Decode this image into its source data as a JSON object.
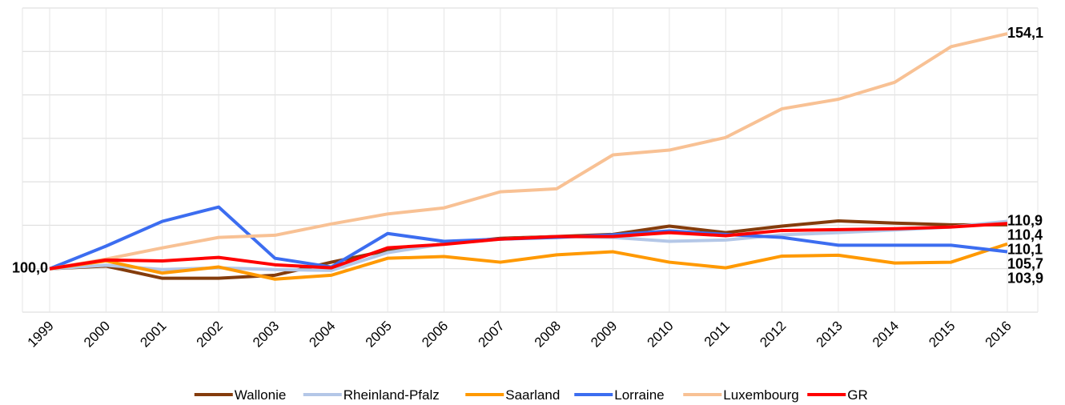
{
  "chart_data": {
    "type": "line",
    "categories": [
      "1999",
      "2000",
      "2001",
      "2002",
      "2003",
      "2004",
      "2005",
      "2006",
      "2007",
      "2008",
      "2009",
      "2010",
      "2011",
      "2012",
      "2013",
      "2014",
      "2015",
      "2016"
    ],
    "ylim": [
      90,
      160
    ],
    "yticks": [
      90,
      100,
      110,
      120,
      130,
      140,
      150,
      160
    ],
    "grid": true,
    "legend": "bottom",
    "series": [
      {
        "name": "Wallonie",
        "color": "#843c0c",
        "values": [
          100,
          100.6,
          97.8,
          97.8,
          98.5,
          101.5,
          104.2,
          105.7,
          107,
          107.4,
          107.9,
          109.8,
          108.3,
          109.8,
          111,
          110.5,
          110.1,
          110.1
        ],
        "value_labels": [
          null,
          null,
          null,
          null,
          null,
          null,
          null,
          null,
          null,
          null,
          null,
          null,
          null,
          null,
          null,
          null,
          null,
          "110,1"
        ]
      },
      {
        "name": "Rheinland-Pfalz",
        "color": "#b4c7e7",
        "values": [
          100,
          100.8,
          99.8,
          100.2,
          99.8,
          99.6,
          103.7,
          105.7,
          106.8,
          107.4,
          107.2,
          106.3,
          106.6,
          107.8,
          108.3,
          108.9,
          109.6,
          110.9
        ],
        "value_labels": [
          null,
          null,
          null,
          null,
          null,
          null,
          null,
          null,
          null,
          null,
          null,
          null,
          null,
          null,
          null,
          null,
          null,
          "110,9"
        ]
      },
      {
        "name": "Saarland",
        "color": "#ff9900",
        "values": [
          100,
          101.8,
          99,
          100.4,
          97.6,
          98.5,
          102.4,
          102.8,
          101.5,
          103.2,
          103.9,
          101.5,
          100.2,
          102.9,
          103.1,
          101.3,
          101.5,
          105.7
        ],
        "value_labels": [
          null,
          null,
          null,
          null,
          null,
          null,
          null,
          null,
          null,
          null,
          null,
          null,
          null,
          null,
          null,
          null,
          null,
          "105,7"
        ]
      },
      {
        "name": "Lorraine",
        "color": "#3c6df0",
        "values": [
          100,
          105.2,
          110.9,
          114.2,
          102.4,
          100.4,
          108.1,
          106.3,
          106.8,
          107.2,
          107.8,
          108.7,
          107.9,
          107.2,
          105.4,
          105.4,
          105.4,
          103.9
        ],
        "value_labels": [
          null,
          null,
          null,
          null,
          null,
          null,
          null,
          null,
          null,
          null,
          null,
          null,
          null,
          null,
          null,
          null,
          null,
          "103,9"
        ]
      },
      {
        "name": "Luxembourg",
        "color": "#f8c194",
        "values": [
          100,
          102.2,
          104.8,
          107.2,
          107.7,
          110.3,
          112.6,
          114,
          117.7,
          118.4,
          126.2,
          127.3,
          130.2,
          136.8,
          139,
          142.9,
          151.1,
          154.1
        ],
        "value_labels": [
          null,
          null,
          null,
          null,
          null,
          null,
          null,
          null,
          null,
          null,
          null,
          null,
          null,
          null,
          null,
          null,
          null,
          "154,1"
        ]
      },
      {
        "name": "GR",
        "color": "#ff0000",
        "values": [
          100,
          102,
          101.8,
          102.6,
          100.9,
          100.2,
          104.8,
          105.6,
          106.8,
          107.4,
          107.4,
          108.3,
          107.6,
          108.8,
          109,
          109.2,
          109.6,
          110.4
        ],
        "value_labels": [
          "100,0",
          null,
          null,
          null,
          null,
          null,
          null,
          null,
          null,
          null,
          null,
          null,
          null,
          null,
          null,
          null,
          null,
          "110,4"
        ]
      }
    ]
  }
}
